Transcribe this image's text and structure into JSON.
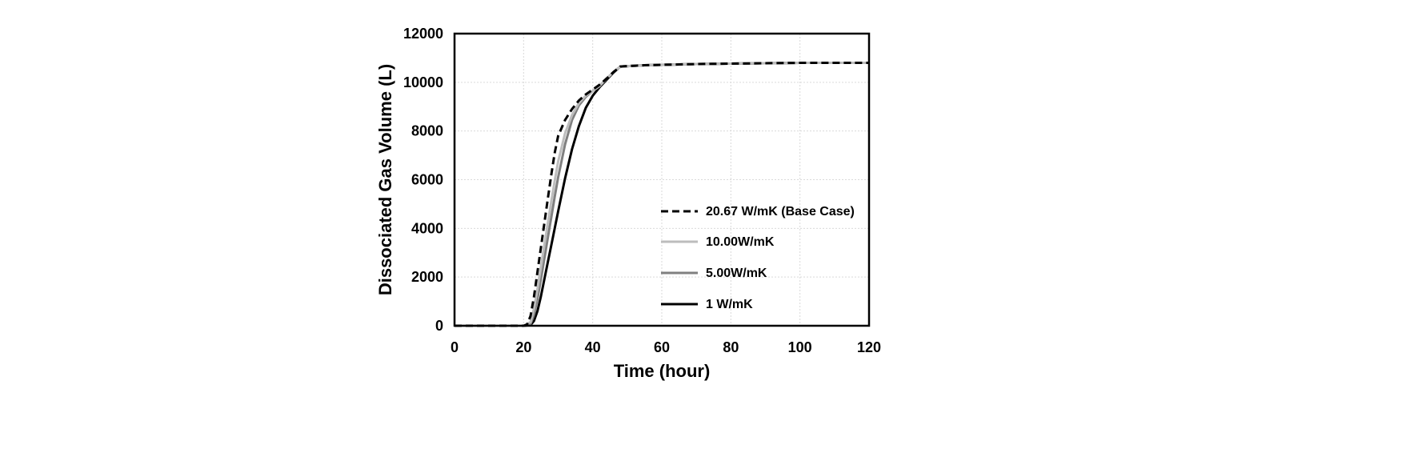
{
  "chart_data": {
    "type": "line",
    "xlabel": "Time (hour)",
    "ylabel": "Dissociated Gas Volume (L)",
    "xlim": [
      0,
      120
    ],
    "ylim": [
      0,
      12000
    ],
    "xticks": [
      0,
      20,
      40,
      60,
      80,
      100,
      120
    ],
    "yticks": [
      0,
      2000,
      4000,
      6000,
      8000,
      10000,
      12000
    ],
    "grid": true,
    "legend_position": "right",
    "series": [
      {
        "name": "20.67 W/mK (Base Case)",
        "color": "#000000",
        "style": "dashed",
        "points": [
          [
            0,
            0
          ],
          [
            20,
            0
          ],
          [
            21,
            50
          ],
          [
            22,
            400
          ],
          [
            23,
            1200
          ],
          [
            24,
            2200
          ],
          [
            25,
            3200
          ],
          [
            26,
            4200
          ],
          [
            27,
            5200
          ],
          [
            28,
            6200
          ],
          [
            29,
            7100
          ],
          [
            30,
            7800
          ],
          [
            32,
            8450
          ],
          [
            34,
            8900
          ],
          [
            36,
            9250
          ],
          [
            38,
            9500
          ],
          [
            40,
            9700
          ],
          [
            42,
            9900
          ],
          [
            44,
            10150
          ],
          [
            46,
            10420
          ],
          [
            48,
            10650
          ],
          [
            55,
            10700
          ],
          [
            70,
            10750
          ],
          [
            100,
            10800
          ],
          [
            120,
            10800
          ]
        ]
      },
      {
        "name": "10.00W/mK",
        "color": "#bdbdbd",
        "style": "solid",
        "points": [
          [
            0,
            0
          ],
          [
            20,
            0
          ],
          [
            22,
            150
          ],
          [
            23,
            700
          ],
          [
            24,
            1500
          ],
          [
            25,
            2400
          ],
          [
            26,
            3300
          ],
          [
            27,
            4200
          ],
          [
            28,
            5100
          ],
          [
            29,
            5950
          ],
          [
            30,
            6750
          ],
          [
            32,
            7900
          ],
          [
            34,
            8650
          ],
          [
            36,
            9150
          ],
          [
            38,
            9450
          ],
          [
            40,
            9650
          ],
          [
            42,
            9850
          ],
          [
            44,
            10150
          ],
          [
            46,
            10420
          ],
          [
            48,
            10650
          ],
          [
            55,
            10700
          ],
          [
            70,
            10750
          ],
          [
            100,
            10800
          ],
          [
            120,
            10800
          ]
        ]
      },
      {
        "name": "5.00W/mK",
        "color": "#808080",
        "style": "solid",
        "points": [
          [
            0,
            0
          ],
          [
            20,
            0
          ],
          [
            22,
            80
          ],
          [
            23,
            450
          ],
          [
            24,
            1100
          ],
          [
            25,
            1900
          ],
          [
            26,
            2750
          ],
          [
            27,
            3600
          ],
          [
            28,
            4450
          ],
          [
            29,
            5300
          ],
          [
            30,
            6100
          ],
          [
            32,
            7450
          ],
          [
            34,
            8450
          ],
          [
            36,
            9050
          ],
          [
            38,
            9400
          ],
          [
            40,
            9650
          ],
          [
            42,
            9850
          ],
          [
            44,
            10150
          ],
          [
            46,
            10420
          ],
          [
            48,
            10650
          ],
          [
            55,
            10700
          ],
          [
            70,
            10750
          ],
          [
            100,
            10800
          ],
          [
            120,
            10800
          ]
        ]
      },
      {
        "name": "1 W/mK",
        "color": "#000000",
        "style": "solid",
        "points": [
          [
            0,
            0
          ],
          [
            20,
            0
          ],
          [
            22,
            30
          ],
          [
            23,
            200
          ],
          [
            24,
            600
          ],
          [
            25,
            1200
          ],
          [
            26,
            1900
          ],
          [
            27,
            2600
          ],
          [
            28,
            3300
          ],
          [
            29,
            4000
          ],
          [
            30,
            4700
          ],
          [
            32,
            6050
          ],
          [
            34,
            7250
          ],
          [
            36,
            8200
          ],
          [
            38,
            8950
          ],
          [
            40,
            9450
          ],
          [
            42,
            9800
          ],
          [
            44,
            10100
          ],
          [
            46,
            10400
          ],
          [
            48,
            10650
          ],
          [
            55,
            10700
          ],
          [
            70,
            10750
          ],
          [
            100,
            10800
          ],
          [
            120,
            10800
          ]
        ]
      }
    ]
  }
}
